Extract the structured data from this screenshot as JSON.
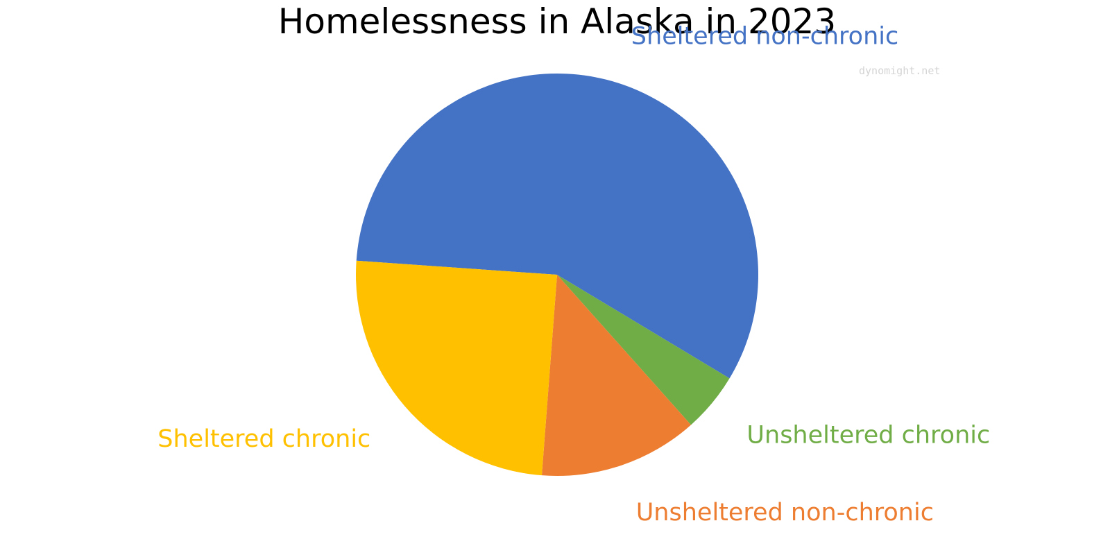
{
  "chart_data": {
    "type": "pie",
    "title": "Homelessness in Alaska in 2023",
    "watermark": "dynomight.net",
    "start_angle_deg": -176,
    "direction": "clockwise",
    "legend": "none",
    "categories": [
      "Sheltered non-chronic",
      "Unsheltered chronic",
      "Unsheltered non-chronic",
      "Sheltered chronic"
    ],
    "values": [
      57.5,
      4.8,
      12.8,
      24.9
    ],
    "colors": [
      "#4472C4",
      "#70AD47",
      "#ED7D31",
      "#FFC000"
    ]
  }
}
